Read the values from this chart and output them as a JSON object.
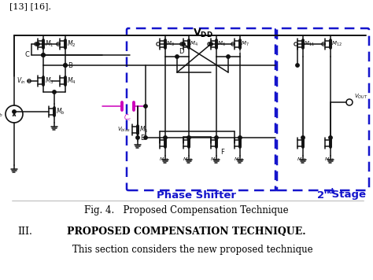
{
  "title": "Fig. 4.   Proposed Compensation Technique",
  "section_title": "III.",
  "section_name": "PROPOSED COMPENSATION TECHNIQUE.",
  "section_text": "This section considers the new proposed technique",
  "header_text": "[13] [16].",
  "phase_shifter_label": "Phase Shifter",
  "stage2_label": "2",
  "stage2_superscript": "nd",
  "stage2_suffix": " Stage",
  "bg_color": "#ffffff",
  "circuit_color": "#111111",
  "dashed_box_color": "#1515cc",
  "blue_label_color": "#1515cc",
  "magenta_color": "#cc00bb",
  "fig_width": 4.74,
  "fig_height": 3.56,
  "dpi": 100
}
